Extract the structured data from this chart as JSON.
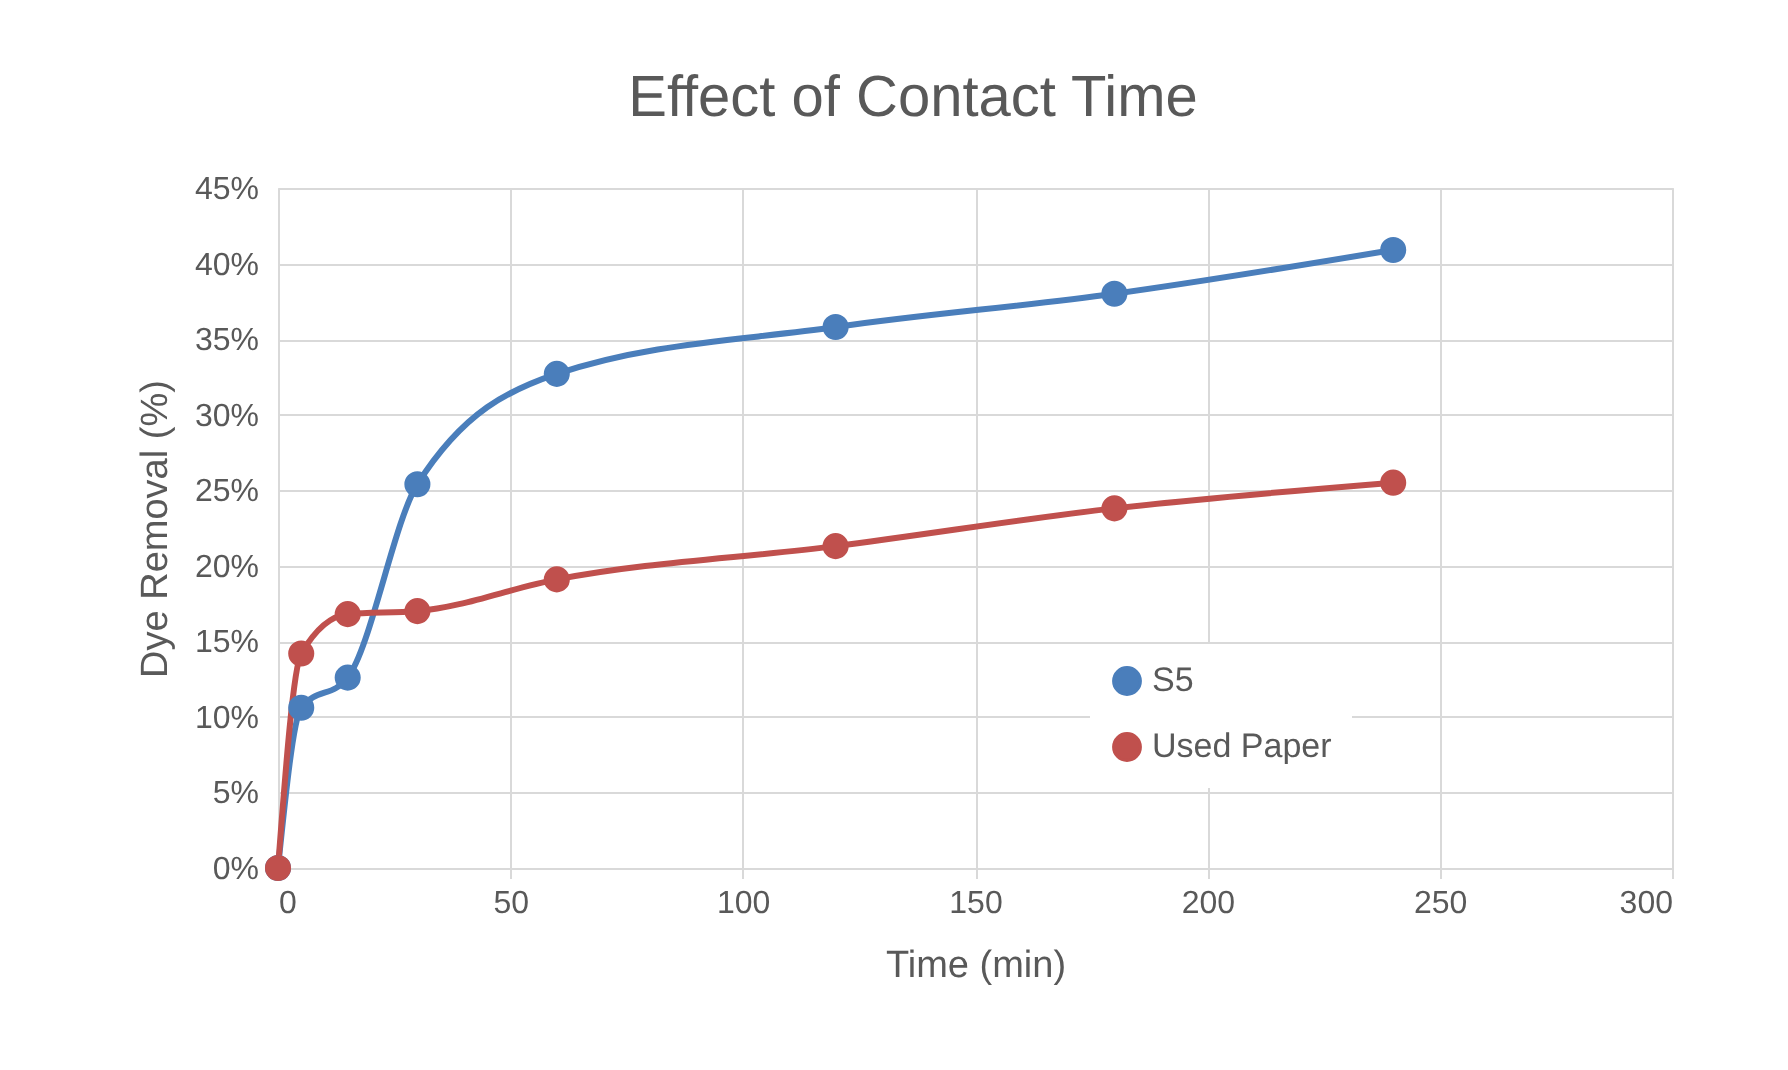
{
  "chart_data": {
    "type": "line",
    "title": "Effect of Contact Time",
    "xlabel": "Time (min)",
    "ylabel": "Dye Removal (%)",
    "xlim": [
      0,
      300
    ],
    "xticks": [
      0,
      50,
      100,
      150,
      200,
      250,
      300
    ],
    "ylim": [
      0,
      45
    ],
    "yticks": [
      {
        "value": 0,
        "label": "0%"
      },
      {
        "value": 5,
        "label": "5%"
      },
      {
        "value": 10,
        "label": "10%"
      },
      {
        "value": 15,
        "label": "15%"
      },
      {
        "value": 20,
        "label": "20%"
      },
      {
        "value": 25,
        "label": "25%"
      },
      {
        "value": 30,
        "label": "30%"
      },
      {
        "value": 35,
        "label": "35%"
      },
      {
        "value": 40,
        "label": "40%"
      },
      {
        "value": 45,
        "label": "45%"
      }
    ],
    "x": [
      0,
      5,
      15,
      30,
      60,
      120,
      180,
      240
    ],
    "series": [
      {
        "name": "S5",
        "color": "#4a7ebb",
        "values": [
          0,
          10.6,
          12.6,
          25.4,
          32.7,
          35.8,
          38.0,
          40.9
        ]
      },
      {
        "name": "Used Paper",
        "color": "#c0504d",
        "values": [
          0,
          14.2,
          16.8,
          17.0,
          19.1,
          21.3,
          23.8,
          25.5
        ]
      }
    ],
    "grid": true,
    "legend": "right",
    "marker": "circle",
    "line_style": "solid"
  }
}
